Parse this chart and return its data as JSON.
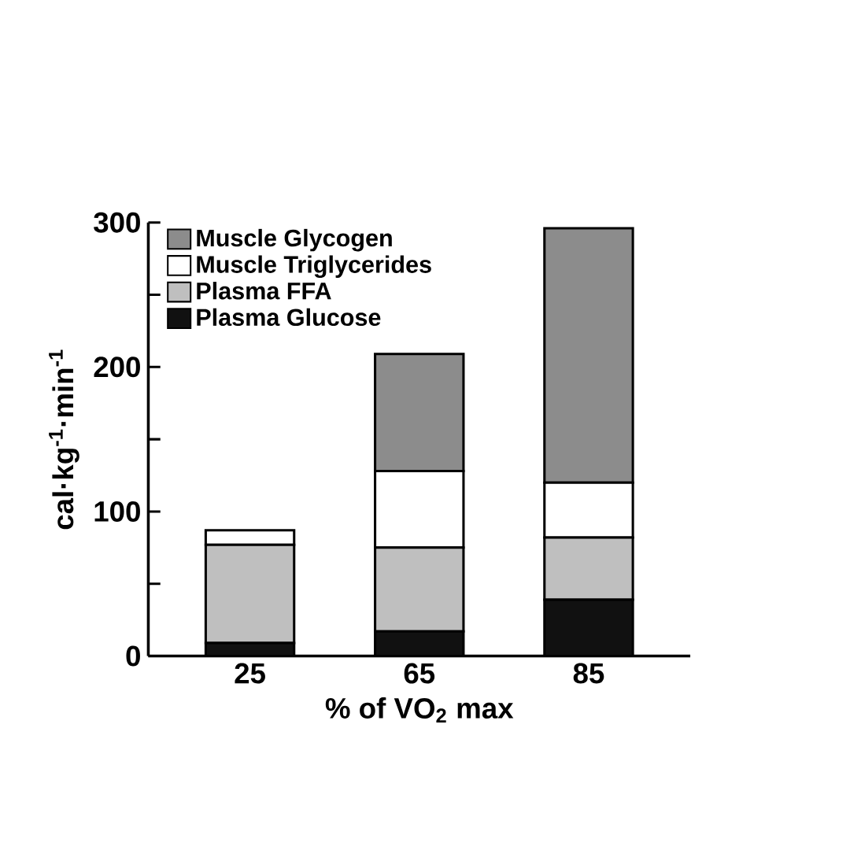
{
  "chart_data": {
    "type": "bar",
    "stacked": true,
    "xlabel": "% of VO$_{2}$ max",
    "ylabel": "cal·kg$^{-1}$·min$^{-1}$",
    "categories": [
      "25",
      "65",
      "85"
    ],
    "series": [
      {
        "name": "Plasma Glucose",
        "color": "#111111",
        "values": [
          9,
          17,
          39
        ]
      },
      {
        "name": "Plasma FFA",
        "color": "#bfbfbf",
        "values": [
          68,
          58,
          43
        ]
      },
      {
        "name": "Muscle Triglycerides",
        "color": "#ffffff",
        "values": [
          10,
          53,
          38
        ]
      },
      {
        "name": "Muscle Glycogen",
        "color": "#8c8c8c",
        "values": [
          0,
          81,
          176
        ]
      }
    ],
    "ylim": [
      0,
      300
    ],
    "yticks": [
      0,
      {
        "value": 50,
        "label": null
      },
      100,
      {
        "value": 150,
        "label": null
      },
      200,
      {
        "value": 250,
        "label": null
      },
      300
    ],
    "legend": "top left",
    "grid": false
  }
}
